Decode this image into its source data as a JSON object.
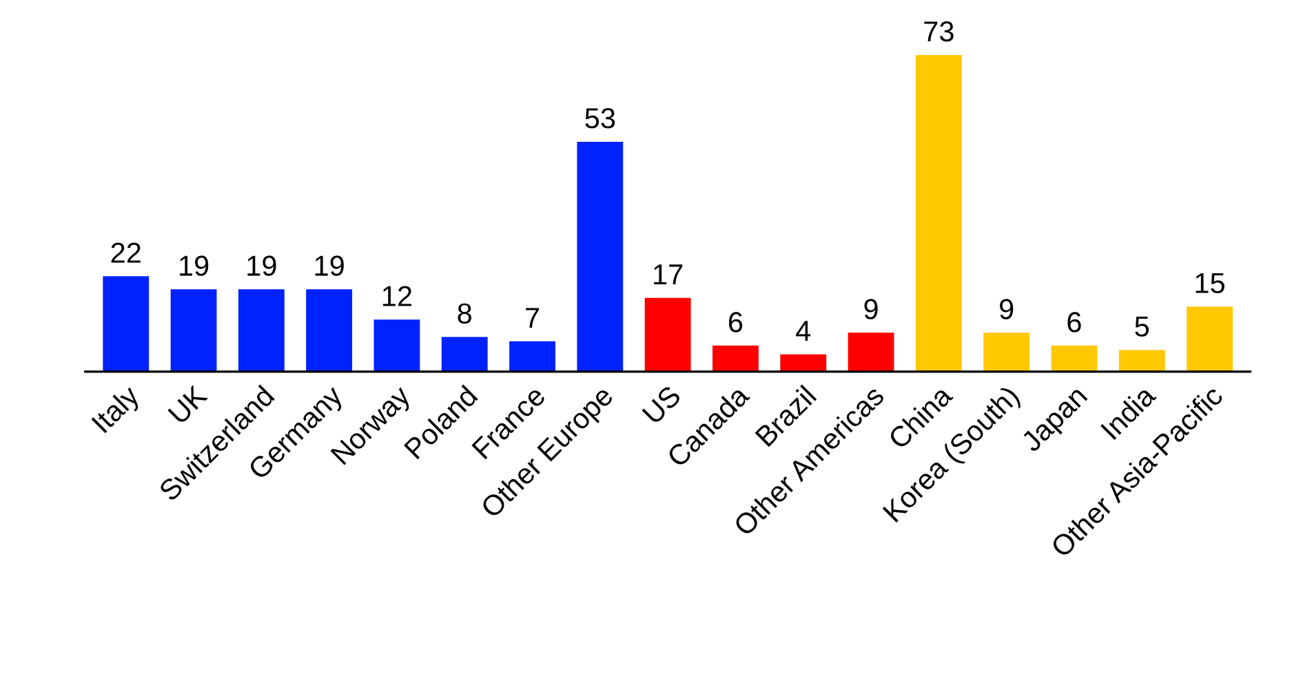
{
  "chart_data": {
    "type": "bar",
    "categories": [
      "Italy",
      "UK",
      "Switzerland",
      "Germany",
      "Norway",
      "Poland",
      "France",
      "Other Europe",
      "US",
      "Canada",
      "Brazil",
      "Other Americas",
      "China",
      "Korea (South)",
      "Japan",
      "India",
      "Other Asia-Pacific"
    ],
    "values": [
      22,
      19,
      19,
      19,
      12,
      8,
      7,
      53,
      17,
      6,
      4,
      9,
      73,
      9,
      6,
      5,
      15
    ],
    "colors": [
      "#0022ff",
      "#0022ff",
      "#0022ff",
      "#0022ff",
      "#0022ff",
      "#0022ff",
      "#0022ff",
      "#0022ff",
      "#ff0000",
      "#ff0000",
      "#ff0000",
      "#ff0000",
      "#ffc800",
      "#ffc800",
      "#ffc800",
      "#ffc800",
      "#ffc800"
    ],
    "data_labels": true,
    "grid": false,
    "legend": false
  }
}
